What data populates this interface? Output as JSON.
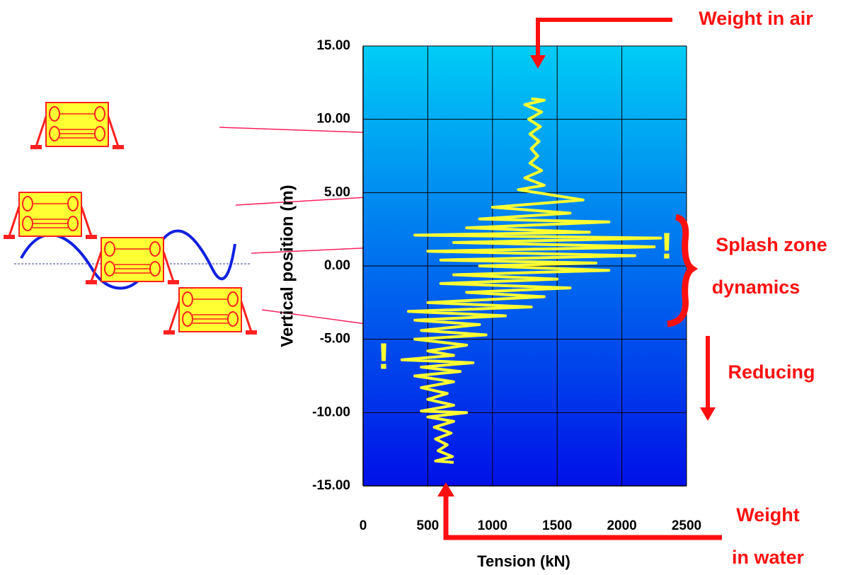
{
  "chart_data": {
    "type": "line",
    "x_label": "Tension (kN)",
    "y_label": "Vertical position (m)",
    "color": "#ffff33",
    "grid": true,
    "xlim": [
      0,
      2500
    ],
    "xticks": [
      0,
      500,
      1000,
      1500,
      2000,
      2500
    ],
    "ylim": [
      -15,
      15
    ],
    "yticks": [
      {
        "value": -15,
        "label": "-15.00"
      },
      {
        "value": -10,
        "label": "-10.00"
      },
      {
        "value": -5,
        "label": "-5.00"
      },
      {
        "value": 0,
        "label": "0.00"
      },
      {
        "value": 5,
        "label": "5.00"
      },
      {
        "value": 10,
        "label": "10.00"
      },
      {
        "value": 15,
        "label": "15.00"
      }
    ],
    "x": [
      1300,
      1400,
      1250,
      1380,
      1280,
      1370,
      1290,
      1360,
      1300,
      1350,
      1290,
      1380,
      1250,
      1400,
      1200,
      1700,
      1000,
      1600,
      900,
      1900,
      800,
      1750,
      400,
      2300,
      700,
      2250,
      500,
      2100,
      600,
      1800,
      900,
      1900,
      700,
      1500,
      600,
      1600,
      800,
      1400,
      500,
      1300,
      350,
      1100,
      400,
      900,
      450,
      950,
      400,
      800,
      500,
      700,
      300,
      850,
      450,
      750,
      400,
      700,
      450,
      650,
      500,
      700,
      450,
      800,
      500,
      700,
      550,
      680,
      560,
      650,
      580,
      690,
      560,
      700
    ],
    "values": [
      11.4,
      11.3,
      11.0,
      10.5,
      10.0,
      9.5,
      9.0,
      8.5,
      8.0,
      7.5,
      7.0,
      6.5,
      6.0,
      5.5,
      5.2,
      4.5,
      4.0,
      3.6,
      3.2,
      3.0,
      2.6,
      2.3,
      2.1,
      1.9,
      1.6,
      1.3,
      1.0,
      0.7,
      0.4,
      0.2,
      0.0,
      -0.3,
      -0.6,
      -0.9,
      -1.2,
      -1.5,
      -1.8,
      -2.1,
      -2.5,
      -2.8,
      -3.1,
      -3.4,
      -3.7,
      -4.0,
      -4.4,
      -4.7,
      -5.0,
      -5.4,
      -5.8,
      -6.1,
      -6.4,
      -6.6,
      -6.9,
      -7.2,
      -7.5,
      -7.9,
      -8.3,
      -8.7,
      -9.1,
      -9.5,
      -9.9,
      -10.0,
      -10.3,
      -10.6,
      -11.0,
      -11.4,
      -11.8,
      -12.2,
      -12.6,
      -13.0,
      -13.3,
      -13.4
    ],
    "annotations": [
      "Weight in air",
      "Splash zone",
      "dynamics",
      "Reducing",
      "Weight",
      "in water",
      "!",
      "!"
    ]
  }
}
